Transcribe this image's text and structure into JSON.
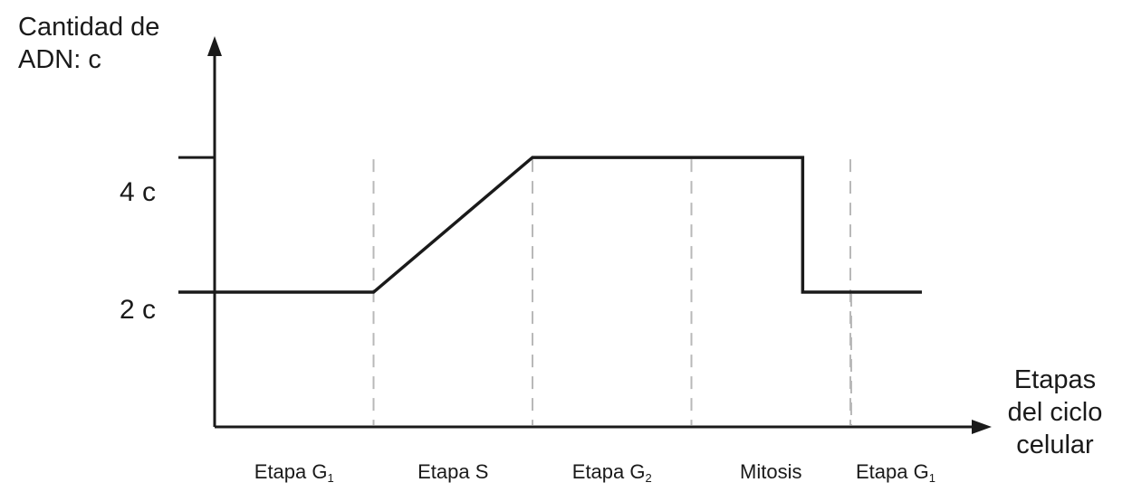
{
  "chart_data": {
    "type": "line",
    "ylabel_lines": [
      "Cantidad de",
      "ADN: c"
    ],
    "xlabel_lines": [
      "Etapas",
      "del ciclo",
      "celular"
    ],
    "yticks": [
      {
        "value": 2,
        "label": "2 c"
      },
      {
        "value": 4,
        "label": "4 c"
      }
    ],
    "ylim": [
      0,
      5.8
    ],
    "xlim": [
      0,
      5
    ],
    "stages": [
      {
        "label": "Etapa G",
        "sub": "1"
      },
      {
        "label": "Etapa S",
        "sub": ""
      },
      {
        "label": "Etapa G",
        "sub": "2"
      },
      {
        "label": "Mitosis",
        "sub": ""
      },
      {
        "label": "Etapa G",
        "sub": "1"
      }
    ],
    "stage_boundaries": [
      1,
      2,
      3,
      4
    ],
    "series": [
      {
        "x": [
          0,
          1,
          2,
          3,
          3.7,
          3.7,
          4.45
        ],
        "y": [
          2,
          2,
          4,
          4,
          4,
          2,
          2
        ]
      }
    ],
    "grid": false,
    "colors": {
      "line": "#1a1a1a",
      "axis": "#1a1a1a",
      "guide": "#b8b8b8"
    }
  }
}
